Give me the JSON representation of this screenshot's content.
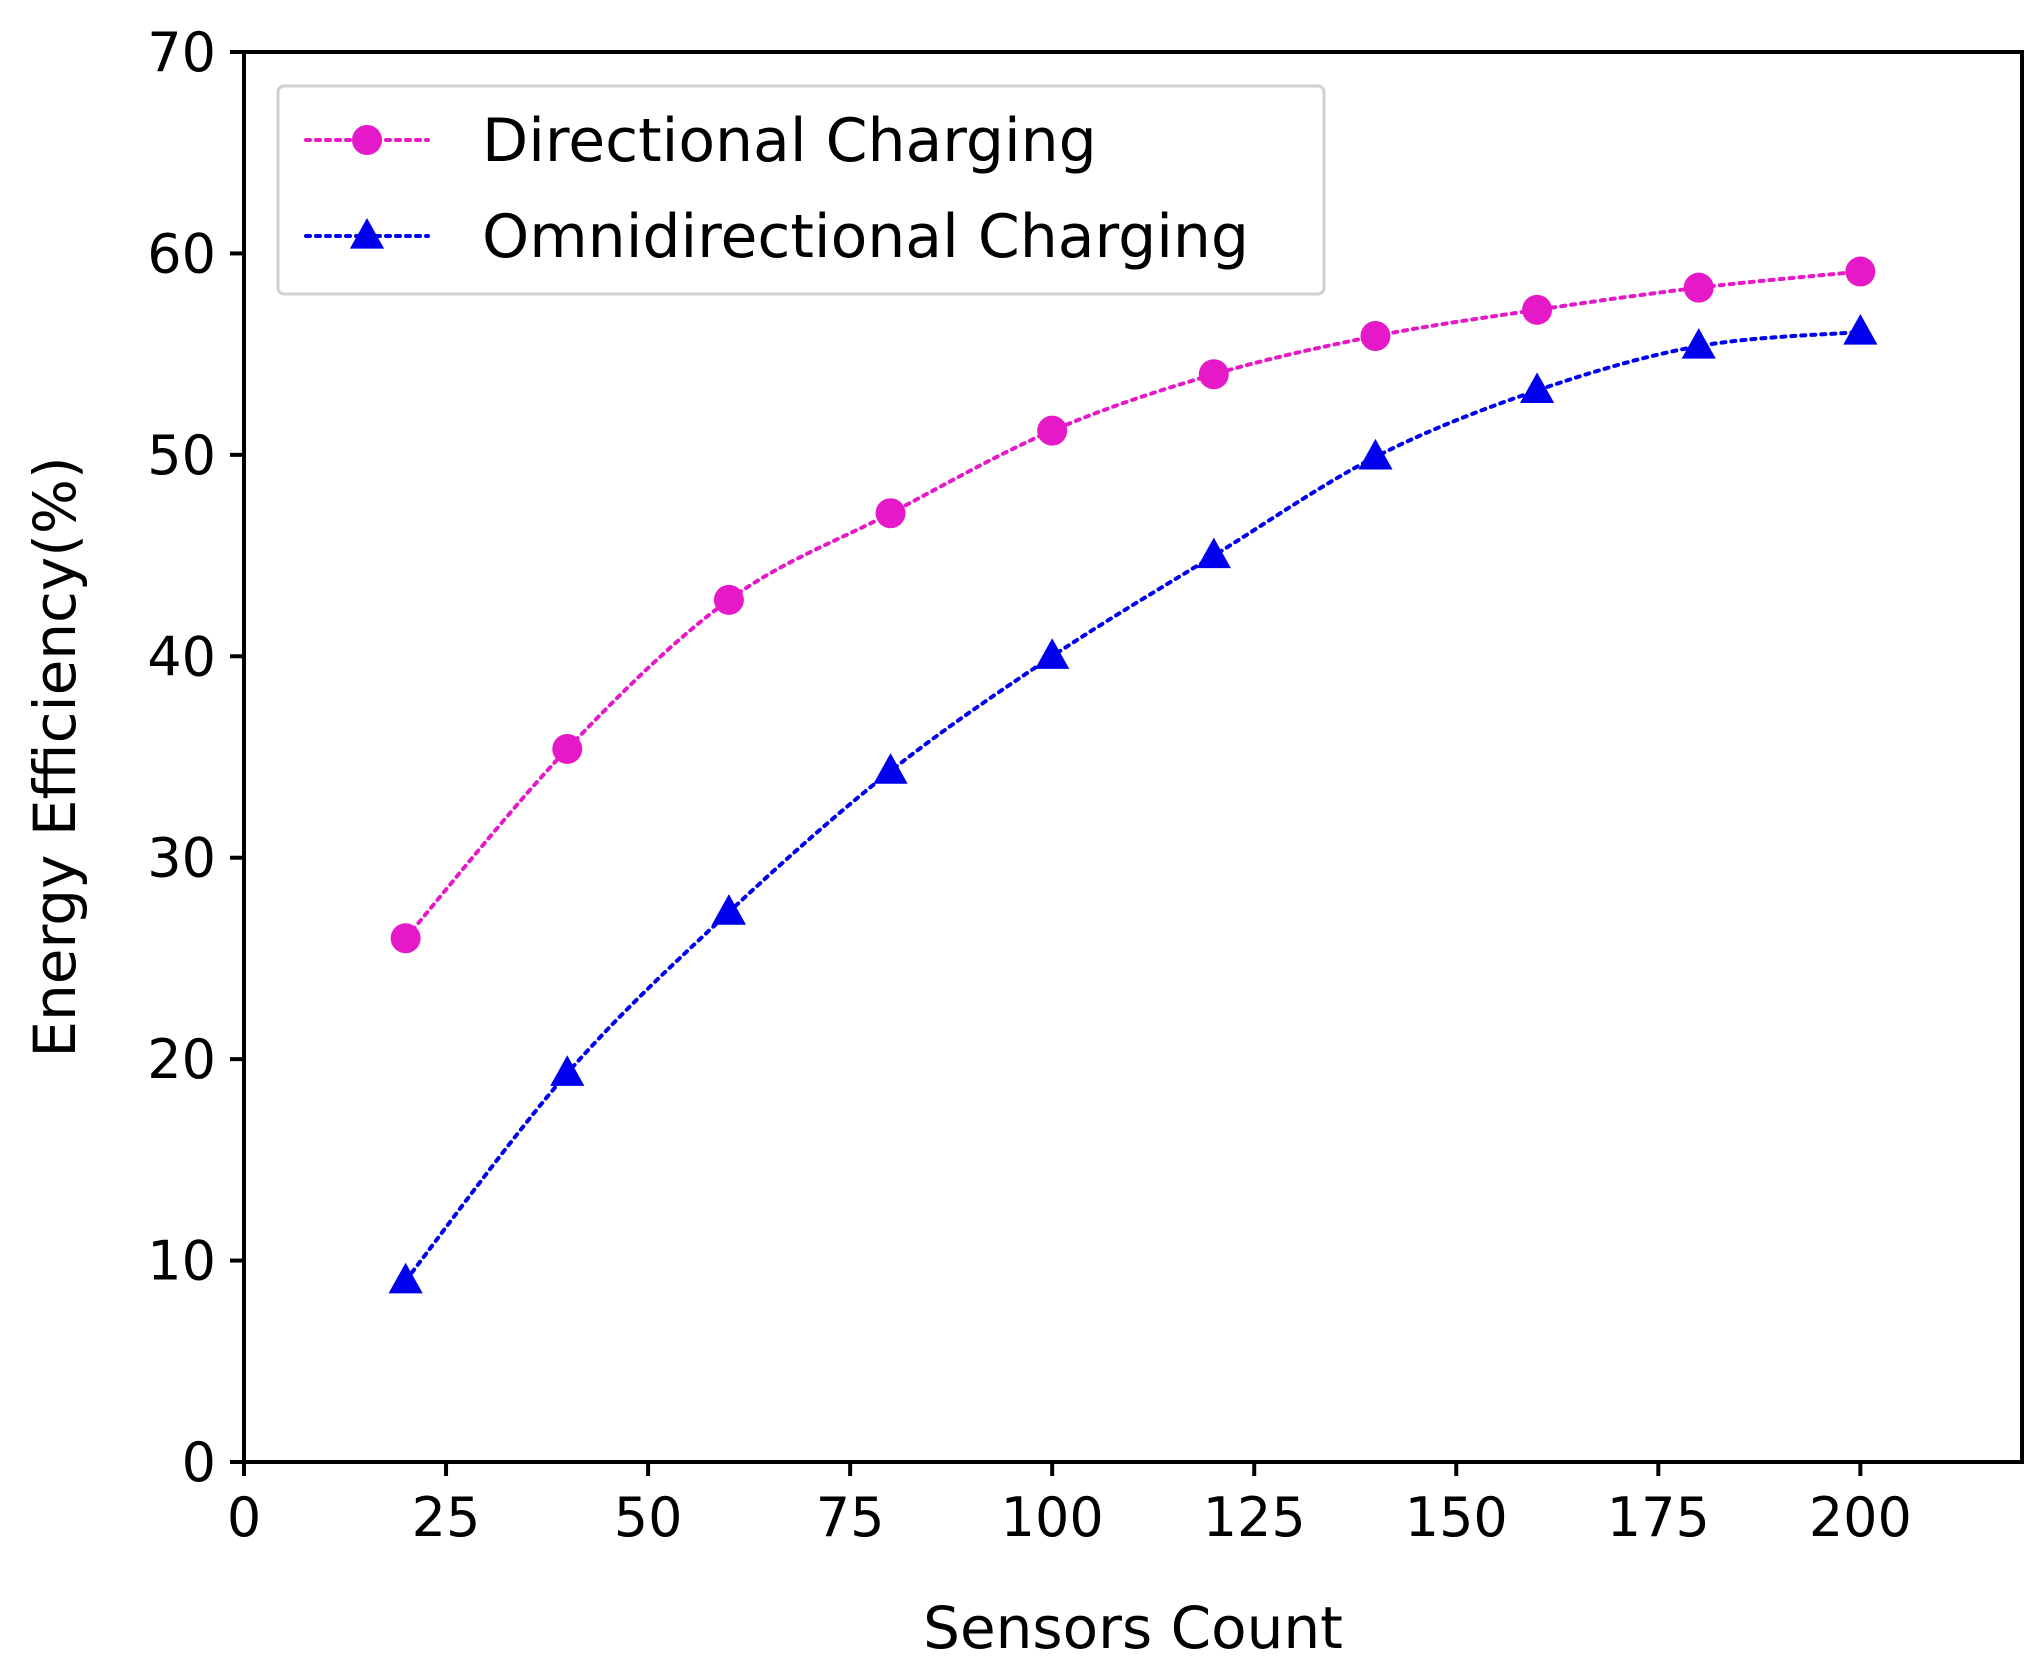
{
  "chart_data": {
    "type": "line",
    "title": "",
    "xlabel": "Sensors Count",
    "ylabel": "Energy Efficiency(%)",
    "xlim": [
      0,
      220
    ],
    "ylim": [
      0,
      70
    ],
    "xticks": [
      0,
      25,
      50,
      75,
      100,
      125,
      150,
      175,
      200
    ],
    "yticks": [
      0,
      10,
      20,
      30,
      40,
      50,
      60,
      70
    ],
    "grid": false,
    "legend_position": "top-left",
    "x": [
      20,
      40,
      60,
      80,
      100,
      120,
      140,
      160,
      180,
      200
    ],
    "series": [
      {
        "name": "Directional Charging",
        "marker": "circle",
        "line_style": "dotted",
        "color": "#e619c8",
        "values": [
          26.0,
          35.4,
          42.8,
          47.1,
          51.2,
          54.0,
          55.9,
          57.2,
          58.3,
          59.1
        ]
      },
      {
        "name": "Omnidirectional Charging",
        "marker": "triangle",
        "line_style": "dotted",
        "color": "#0000ee",
        "values": [
          9.0,
          19.3,
          27.3,
          34.3,
          40.0,
          45.0,
          49.9,
          53.2,
          55.4,
          56.1
        ]
      }
    ]
  }
}
